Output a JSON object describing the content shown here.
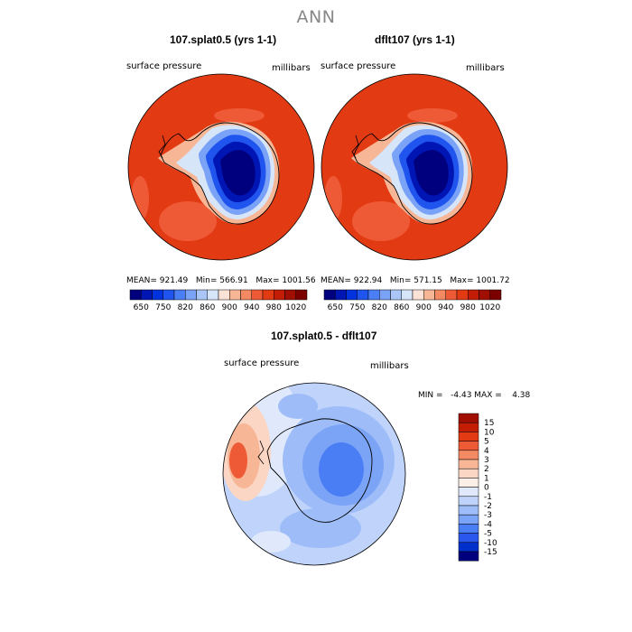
{
  "title": "ANN",
  "chart_data": [
    {
      "type": "heatmap",
      "projection": "polar stereographic (south pole)",
      "title": "107.splat0.5 (yrs 1-1)",
      "left_label": "surface pressure",
      "right_label": "millibars",
      "stats": {
        "mean_label": "MEAN=",
        "mean": "921.49",
        "min_label": "Min=",
        "min": "566.91",
        "max_label": "Max=",
        "max": "1001.56"
      },
      "colorbar": {
        "orientation": "horizontal",
        "levels": [
          650,
          700,
          750,
          800,
          820,
          840,
          860,
          880,
          900,
          920,
          940,
          960,
          980,
          1000,
          1020
        ],
        "tick_labels": [
          "650",
          "750",
          "820",
          "860",
          "900",
          "940",
          "980",
          "1020"
        ]
      }
    },
    {
      "type": "heatmap",
      "projection": "polar stereographic (south pole)",
      "title": "dflt107 (yrs 1-1)",
      "left_label": "surface pressure",
      "right_label": "millibars",
      "stats": {
        "mean_label": "MEAN=",
        "mean": "922.94",
        "min_label": "Min=",
        "min": "571.15",
        "max_label": "Max=",
        "max": "1001.72"
      },
      "colorbar": {
        "orientation": "horizontal",
        "levels": [
          650,
          700,
          750,
          800,
          820,
          840,
          860,
          880,
          900,
          920,
          940,
          960,
          980,
          1000,
          1020
        ],
        "tick_labels": [
          "650",
          "750",
          "820",
          "860",
          "900",
          "940",
          "980",
          "1020"
        ]
      }
    },
    {
      "type": "heatmap",
      "projection": "polar stereographic (south pole)",
      "title": "107.splat0.5 - dflt107",
      "left_label": "surface pressure",
      "right_label": "millibars",
      "stats_text": "MIN =   -4.43 MAX =    4.38",
      "colorbar": {
        "orientation": "vertical",
        "tick_labels": [
          "15",
          "10",
          "5",
          "4",
          "3",
          "2",
          "1",
          "0",
          "-1",
          "-2",
          "-3",
          "-4",
          "-5",
          "-10",
          "-15"
        ]
      }
    }
  ],
  "colors": {
    "abs_scale": [
      "#00007f",
      "#0016b4",
      "#0033dd",
      "#1f55ee",
      "#4a7ef5",
      "#7aa3f7",
      "#a9c6f7",
      "#d7e5f8",
      "#fbe2d6",
      "#f7b797",
      "#f48a63",
      "#ef5a36",
      "#e23a13",
      "#c41d06",
      "#a00f02",
      "#7a0000"
    ],
    "diff_scale": [
      "#a00f02",
      "#c41d06",
      "#e23a13",
      "#ef5a36",
      "#f48a63",
      "#f7b797",
      "#fbd6c4",
      "#fbefe8",
      "#dfe9fb",
      "#bfd3fb",
      "#9ebdf8",
      "#7ba4f6",
      "#4a7ef5",
      "#2a58ee",
      "#0030cc",
      "#00007f"
    ]
  }
}
